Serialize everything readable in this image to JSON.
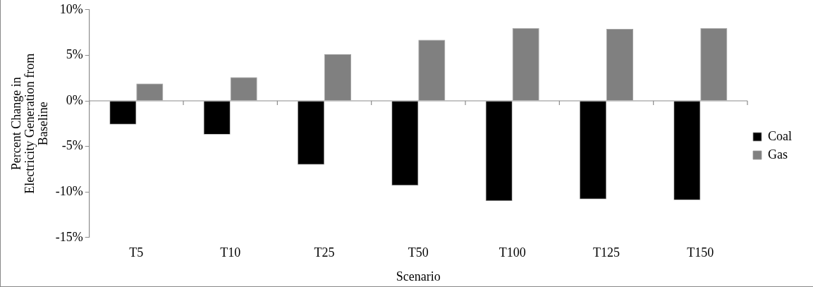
{
  "chart_data": {
    "type": "bar",
    "xlabel": "Scenario",
    "ylabel": "Percent Change in Electricity Generation from Baseline",
    "categories": [
      "T5",
      "T10",
      "T25",
      "T50",
      "T100",
      "T125",
      "T150"
    ],
    "series": [
      {
        "name": "Coal",
        "color": "#000000",
        "values": [
          -2.6,
          -3.7,
          -7.0,
          -9.3,
          -11.0,
          -10.8,
          -10.9
        ]
      },
      {
        "name": "Gas",
        "color": "#808080",
        "values": [
          1.9,
          2.6,
          5.1,
          6.7,
          8.0,
          7.9,
          8.0
        ]
      }
    ],
    "ylim": [
      -15,
      10
    ],
    "yticks": [
      {
        "value": -15,
        "label": "-15%"
      },
      {
        "value": -10,
        "label": "-10%"
      },
      {
        "value": -5,
        "label": "-5%"
      },
      {
        "value": 0,
        "label": "0%"
      },
      {
        "value": 5,
        "label": "5%"
      },
      {
        "value": 10,
        "label": "10%"
      }
    ],
    "legend": "right"
  }
}
